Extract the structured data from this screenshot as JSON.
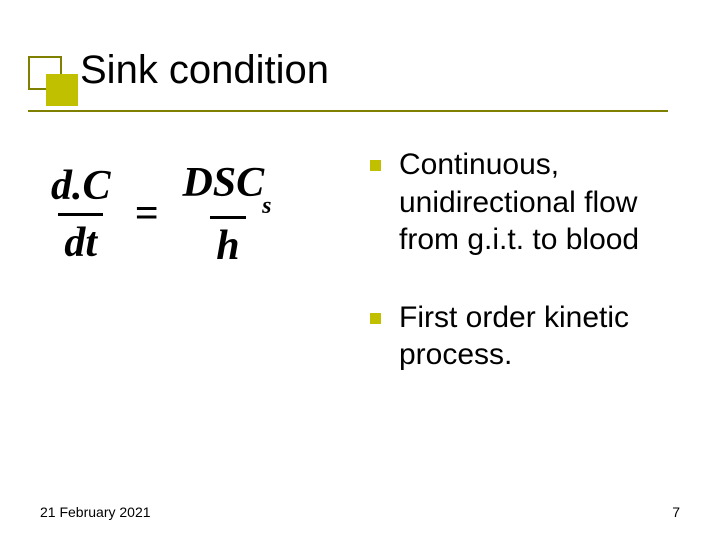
{
  "colors": {
    "deco_outer_border": "#808000",
    "deco_inner_fill": "#c0c000",
    "underline": "#808000",
    "bullet": "#c0c000",
    "text": "#000000",
    "background": "#ffffff"
  },
  "title": "Sink condition",
  "formula": {
    "lhs_num": "d.C",
    "lhs_den": "dt",
    "rhs_num_main": "DSC",
    "rhs_num_sub": "s",
    "rhs_den": "h"
  },
  "bullets": [
    "Continuous, unidirectional flow from g.i.t. to blood",
    "First order kinetic process."
  ],
  "footer": {
    "date": "21 February 2021",
    "page": "7"
  },
  "layout": {
    "slide_width": 720,
    "slide_height": 540,
    "title_fontsize": 40,
    "body_fontsize": 30,
    "formula_fontsize": 42,
    "footer_fontsize": 14
  }
}
